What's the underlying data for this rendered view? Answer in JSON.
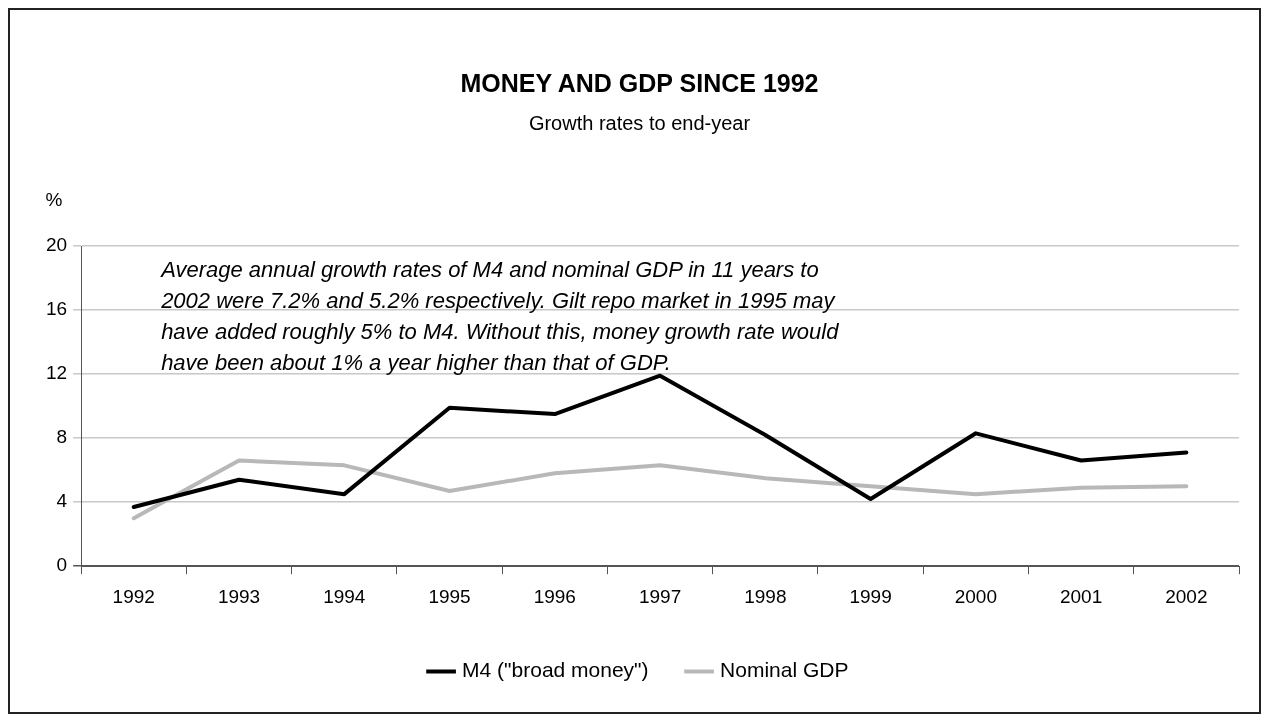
{
  "chart_data": {
    "type": "line",
    "title": "MONEY AND GDP SINCE 1992",
    "subtitle": "Growth rates to end-year",
    "ylabel": "%",
    "categories": [
      "1992",
      "1993",
      "1994",
      "1995",
      "1996",
      "1997",
      "1998",
      "1999",
      "2000",
      "2001",
      "2002"
    ],
    "series": [
      {
        "name": "M4 (\"broad money\")",
        "color": "#000000",
        "values": [
          3.7,
          5.4,
          4.5,
          9.9,
          9.5,
          11.9,
          8.2,
          4.2,
          8.3,
          6.6,
          7.1
        ]
      },
      {
        "name": "Nominal GDP",
        "color": "#b8b8b8",
        "values": [
          3.0,
          6.6,
          6.3,
          4.7,
          5.8,
          6.3,
          5.5,
          5.0,
          4.5,
          4.9,
          5.0
        ]
      }
    ],
    "ylim": [
      0,
      20
    ],
    "yticks": [
      0,
      4,
      8,
      12,
      16,
      20
    ],
    "annotations": [
      "Average annual growth rates of M4 and nominal GDP in 11 years to 2002 were 7.2% and 5.2% respectively. Gilt repo market in 1995 may have added roughly 5% to M4. Without this, money growth rate would have been about 1% a year higher than that of GDP."
    ],
    "grid": "y",
    "legend": "bottom",
    "marker": "none",
    "line_style": "solid"
  }
}
